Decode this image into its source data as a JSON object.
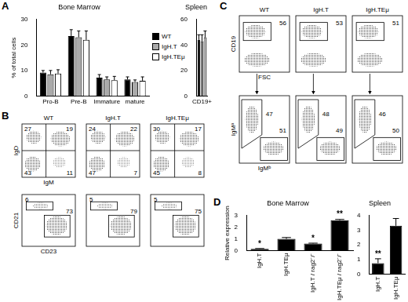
{
  "panel_labels": [
    "A",
    "B",
    "C",
    "D"
  ],
  "chart_data": [
    {
      "type": "bar",
      "title": "Bone Marrow",
      "y_label": "% of total cells",
      "categories": [
        "Pro-B",
        "Pre-B",
        "Immature",
        "mature"
      ],
      "series": [
        {
          "name": "WT",
          "color": "#000000",
          "values": [
            9.2,
            23.5,
            7.2,
            6.5
          ],
          "errors": [
            0.8,
            2.5,
            1.2,
            1.0
          ]
        },
        {
          "name": "IgH.T",
          "color": "#aaaaaa",
          "values": [
            8.5,
            23,
            6.5,
            5.5
          ],
          "errors": [
            1.5,
            2.5,
            1.0,
            0.8
          ]
        },
        {
          "name": "IgH.TEμ",
          "color": "#ffffff",
          "values": [
            8.8,
            22,
            6.2,
            6
          ],
          "errors": [
            1.5,
            3.5,
            1.5,
            1.5
          ]
        }
      ],
      "ylim": [
        0,
        30
      ],
      "yticks": [
        0,
        10,
        20,
        30
      ],
      "grid": false,
      "legend": "right"
    },
    {
      "type": "bar",
      "title": "Spleen",
      "categories": [
        "CD19+"
      ],
      "series": [
        {
          "name": "WT",
          "color": "#000000",
          "values": [
            44
          ],
          "errors": [
            4
          ]
        },
        {
          "name": "IgH.T",
          "color": "#aaaaaa",
          "values": [
            43
          ],
          "errors": [
            5
          ]
        },
        {
          "name": "IgH.TEμ",
          "color": "#ffffff",
          "values": [
            46
          ],
          "errors": [
            5
          ]
        }
      ],
      "ylim": [
        0,
        60
      ],
      "yticks": [
        0,
        20,
        40,
        60
      ],
      "grid": false
    },
    {
      "type": "bar",
      "title": "Bone Marrow",
      "y_label": "Relative expression",
      "categories": [
        "IgH.T",
        "IgH.TEμ",
        "IgH.T / rag2⁻/⁻",
        "IgH.TEμ / rag2⁻/⁻"
      ],
      "values": [
        0.15,
        1.0,
        0.6,
        2.6
      ],
      "errors": [
        0.03,
        0.12,
        0.04,
        0.07
      ],
      "annotations": [
        "*",
        null,
        "*",
        "**"
      ],
      "color": "#000000",
      "ylim": [
        0,
        3
      ],
      "yticks": [
        0,
        1,
        2,
        3
      ],
      "grid": false
    },
    {
      "type": "bar",
      "title": "Spleen",
      "categories": [
        "IgH.T",
        "IgH.TEμ"
      ],
      "values": [
        0.75,
        3.3
      ],
      "errors": [
        0.3,
        0.5
      ],
      "annotations": [
        "**",
        null
      ],
      "color": "#000000",
      "ylim": [
        0,
        4
      ],
      "yticks": [
        0,
        1,
        2,
        3,
        4
      ],
      "grid": false
    }
  ],
  "flow_panels": [
    {
      "columns": [
        "WT",
        "IgH.T",
        "IgH.TEμ"
      ],
      "rows": [
        {
          "y_label": "IgD",
          "x_label": "IgM",
          "numbers": [
            [
              27,
              19,
              43,
              11
            ],
            [
              24,
              22,
              47,
              7
            ],
            [
              30,
              17,
              45,
              8
            ]
          ]
        },
        {
          "y_label": "CD21",
          "x_label": "CD23",
          "numbers": [
            [
              6,
              73
            ],
            [
              5,
              79
            ],
            [
              5,
              75
            ]
          ]
        }
      ]
    },
    {
      "columns": [
        "WT",
        "IgH.T",
        "IgH.TEμ"
      ],
      "rows": [
        {
          "y_label": "CD19",
          "x_label": "FSC",
          "numbers": [
            [
              56
            ],
            [
              53
            ],
            [
              51
            ]
          ]
        },
        {
          "y_label": "IgMᵃ",
          "x_label": "IgMᵇ",
          "numbers": [
            [
              47,
              51
            ],
            [
              48,
              49
            ],
            [
              46,
              50
            ]
          ]
        }
      ]
    }
  ]
}
